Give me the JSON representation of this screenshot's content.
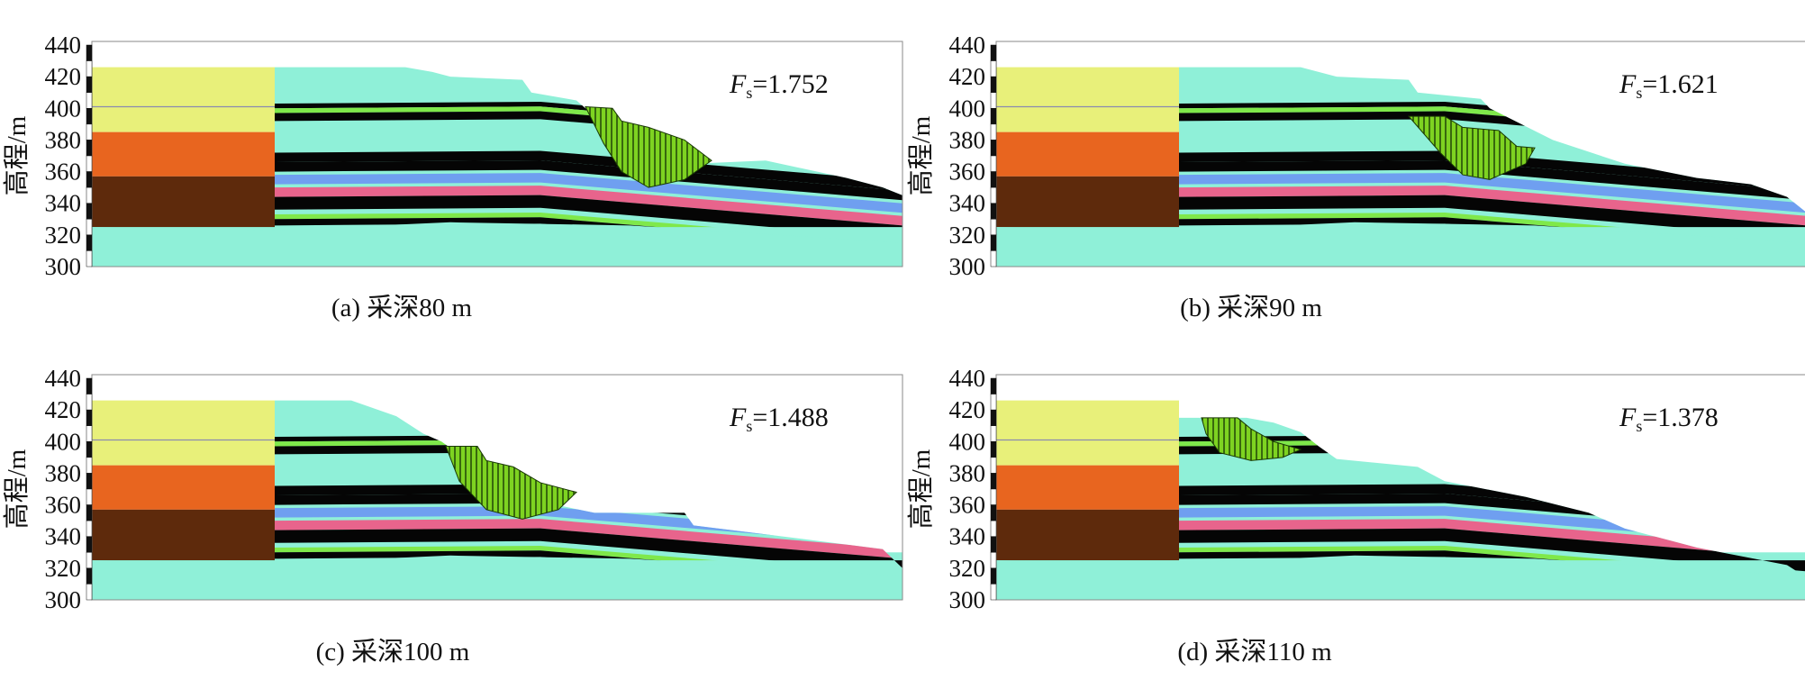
{
  "panels": [
    {
      "caption": "(a) 采深80 m",
      "fs_symbol": "F",
      "fs_sub": "s",
      "fs_value": "=1.752",
      "mining_depth_m": 80
    },
    {
      "caption": "(b) 采深90 m",
      "fs_symbol": "F",
      "fs_sub": "s",
      "fs_value": "=1.621",
      "mining_depth_m": 90
    },
    {
      "caption": "(c) 采深100 m",
      "fs_symbol": "F",
      "fs_sub": "s",
      "fs_value": "=1.488",
      "mining_depth_m": 100
    },
    {
      "caption": "(d) 采深110 m",
      "fs_symbol": "F",
      "fs_sub": "s",
      "fs_value": "=1.378",
      "mining_depth_m": 110
    }
  ],
  "axis": {
    "ylabel": "高程/m",
    "yticks": [
      "440",
      "420",
      "400",
      "380",
      "360",
      "340",
      "320",
      "300"
    ],
    "ymin": 300,
    "ymax": 440
  },
  "colors": {
    "loess_yellow": "#e8f07a",
    "orange_layer": "#e8651f",
    "brown_layer": "#5e2a0c",
    "aqua_rock": "#8ff0d8",
    "coal_black": "#050505",
    "green_seam": "#7fe84a",
    "blue_layer": "#6f9ff0",
    "pink_layer": "#e8648c",
    "slip_green": "#7ed321"
  }
}
